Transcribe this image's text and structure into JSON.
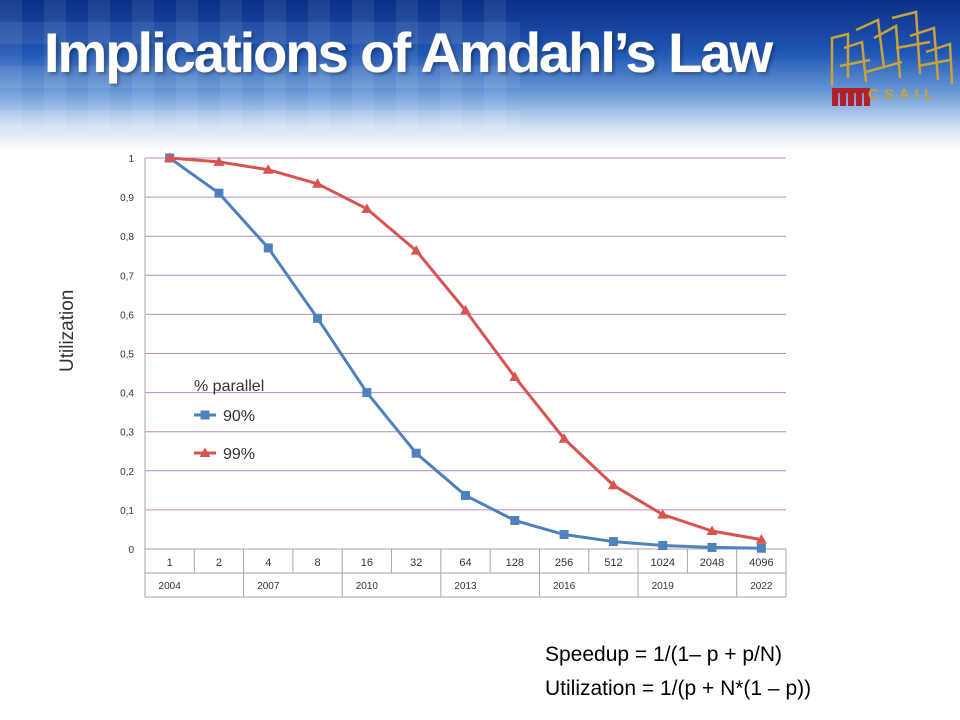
{
  "slide": {
    "title": "Implications of Amdahl’s Law",
    "logo_text": "CSAIL",
    "logo_mark": "MIT",
    "formulas": [
      "Speedup = 1/(1– p + p/N)",
      "Utilization = 1/(p + N*(1 – p))"
    ]
  },
  "chart_data": {
    "type": "line",
    "title": "",
    "ylabel": "Utilization",
    "xlabel": "",
    "categories": [
      "1",
      "2",
      "4",
      "8",
      "16",
      "32",
      "64",
      "128",
      "256",
      "512",
      "1024",
      "2048",
      "4096"
    ],
    "categories_row2": [
      "2004",
      "",
      "2007",
      "",
      "2010",
      "",
      "2013",
      "",
      "2016",
      "",
      "2019",
      "",
      "2022"
    ],
    "ylim": [
      0,
      1
    ],
    "yticks": [
      "0",
      "0,1",
      "0,2",
      "0,3",
      "0,4",
      "0,5",
      "0,6",
      "0,7",
      "0,8",
      "0,9",
      "1"
    ],
    "grid": true,
    "legend": {
      "title": "% parallel",
      "placement": "center-left"
    },
    "series": [
      {
        "name": "90%",
        "color": "#4f81bd",
        "marker": "square",
        "values": [
          1,
          0.91,
          0.77,
          0.59,
          0.4,
          0.245,
          0.137,
          0.073,
          0.037,
          0.019,
          0.009,
          0.004,
          0.002
        ]
      },
      {
        "name": "99%",
        "color": "#d9534f",
        "marker": "triangle",
        "values": [
          1,
          0.99,
          0.97,
          0.934,
          0.87,
          0.763,
          0.61,
          0.44,
          0.282,
          0.163,
          0.088,
          0.046,
          0.024
        ]
      }
    ]
  },
  "colors": {
    "gridline": "#b48ccc",
    "axis": "#a6a6a6",
    "banner_top": "#0c2f86",
    "logo": "#c8a23a",
    "mit": "#b3202a"
  }
}
